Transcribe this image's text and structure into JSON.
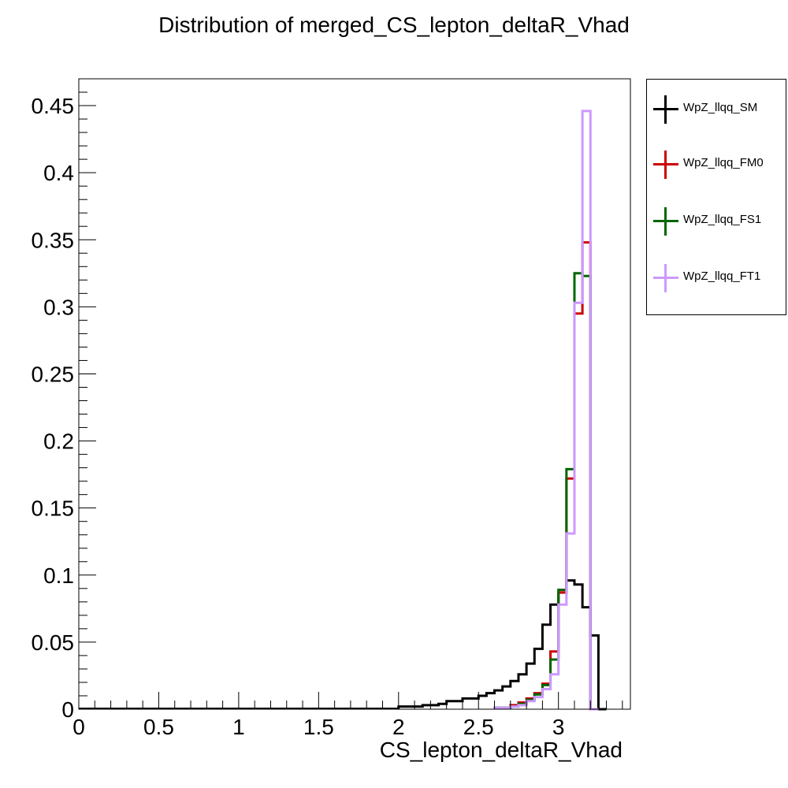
{
  "chart_data": {
    "type": "line",
    "title": "Distribution of merged_CS_lepton_deltaR_Vhad",
    "xlabel": "CS_lepton_deltaR_Vhad",
    "ylabel": "",
    "xlim": [
      0,
      3.45
    ],
    "ylim": [
      0,
      0.47
    ],
    "bin_width": 0.05,
    "x_ticks": [
      0,
      0.5,
      1,
      1.5,
      2,
      2.5,
      3
    ],
    "x_tick_labels": [
      "0",
      "0.5",
      "1",
      "1.5",
      "2",
      "2.5",
      "3"
    ],
    "y_ticks": [
      0,
      0.05,
      0.1,
      0.15,
      0.2,
      0.25,
      0.3,
      0.35,
      0.4,
      0.45
    ],
    "y_tick_labels": [
      "0",
      "0.05",
      "0.1",
      "0.15",
      "0.2",
      "0.25",
      "0.3",
      "0.35",
      "0.4",
      "0.45"
    ],
    "grid": false,
    "legend_position": "outside-right",
    "series": [
      {
        "name": "WpZ_llqq_SM",
        "color": "#000000",
        "bins": [
          [
            2.0,
            0.002
          ],
          [
            2.05,
            0.002
          ],
          [
            2.1,
            0.002
          ],
          [
            2.15,
            0.003
          ],
          [
            2.2,
            0.003
          ],
          [
            2.25,
            0.004
          ],
          [
            2.3,
            0.006
          ],
          [
            2.35,
            0.006
          ],
          [
            2.4,
            0.008
          ],
          [
            2.45,
            0.008
          ],
          [
            2.5,
            0.01
          ],
          [
            2.55,
            0.012
          ],
          [
            2.6,
            0.014
          ],
          [
            2.65,
            0.017
          ],
          [
            2.7,
            0.021
          ],
          [
            2.75,
            0.026
          ],
          [
            2.8,
            0.034
          ],
          [
            2.85,
            0.045
          ],
          [
            2.9,
            0.063
          ],
          [
            2.95,
            0.078
          ],
          [
            3.0,
            0.087
          ],
          [
            3.05,
            0.096
          ],
          [
            3.1,
            0.093
          ],
          [
            3.15,
            0.076
          ],
          [
            3.2,
            0.055
          ],
          [
            3.25,
            0.0
          ]
        ]
      },
      {
        "name": "WpZ_llqq_FM0",
        "color": "#cc0000",
        "bins": [
          [
            2.6,
            0.001
          ],
          [
            2.65,
            0.001
          ],
          [
            2.7,
            0.003
          ],
          [
            2.75,
            0.005
          ],
          [
            2.8,
            0.008
          ],
          [
            2.85,
            0.012
          ],
          [
            2.9,
            0.019
          ],
          [
            2.95,
            0.043
          ],
          [
            3.0,
            0.087
          ],
          [
            3.05,
            0.172
          ],
          [
            3.1,
            0.295
          ],
          [
            3.15,
            0.348
          ],
          [
            3.2,
            0.0
          ]
        ]
      },
      {
        "name": "WpZ_llqq_FS1",
        "color": "#006600",
        "bins": [
          [
            2.6,
            0.001
          ],
          [
            2.65,
            0.001
          ],
          [
            2.7,
            0.002
          ],
          [
            2.75,
            0.004
          ],
          [
            2.8,
            0.007
          ],
          [
            2.85,
            0.011
          ],
          [
            2.9,
            0.018
          ],
          [
            2.95,
            0.037
          ],
          [
            3.0,
            0.089
          ],
          [
            3.05,
            0.179
          ],
          [
            3.1,
            0.325
          ],
          [
            3.15,
            0.323
          ],
          [
            3.2,
            0.0
          ]
        ]
      },
      {
        "name": "WpZ_llqq_FT1",
        "color": "#cc99ff",
        "bins": [
          [
            2.6,
            0.001
          ],
          [
            2.65,
            0.001
          ],
          [
            2.7,
            0.002
          ],
          [
            2.75,
            0.003
          ],
          [
            2.8,
            0.006
          ],
          [
            2.85,
            0.009
          ],
          [
            2.9,
            0.015
          ],
          [
            2.95,
            0.026
          ],
          [
            3.0,
            0.078
          ],
          [
            3.05,
            0.131
          ],
          [
            3.1,
            0.303
          ],
          [
            3.15,
            0.446
          ],
          [
            3.2,
            0.0
          ]
        ]
      }
    ]
  }
}
